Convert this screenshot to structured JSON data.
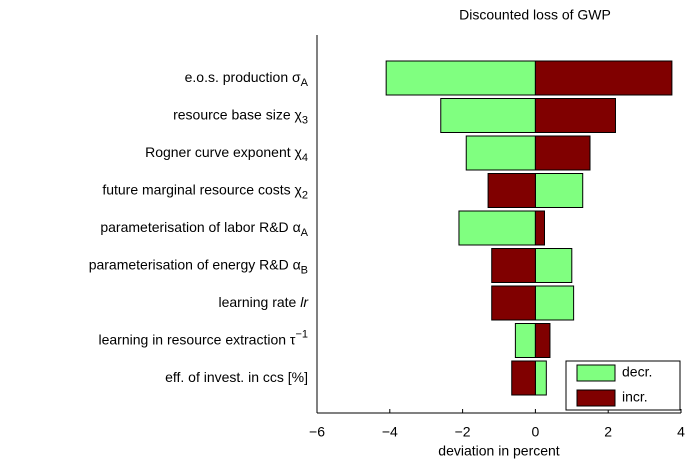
{
  "chart_data": {
    "type": "tornado",
    "title": "Discounted loss of GWP",
    "x_label": "deviation in percent",
    "categories": [
      [
        {
          "text": "e.o.s. production "
        },
        {
          "text": "σ"
        },
        {
          "text": "A",
          "style": "sub"
        }
      ],
      [
        {
          "text": "resource base size "
        },
        {
          "text": "χ"
        },
        {
          "text": "3",
          "style": "sub"
        }
      ],
      [
        {
          "text": "Rogner curve exponent "
        },
        {
          "text": "χ"
        },
        {
          "text": "4",
          "style": "sub"
        }
      ],
      [
        {
          "text": "future marginal resource costs "
        },
        {
          "text": "χ"
        },
        {
          "text": "2",
          "style": "sub"
        }
      ],
      [
        {
          "text": "parameterisation of labor R&D "
        },
        {
          "text": "α"
        },
        {
          "text": "A",
          "style": "sub"
        }
      ],
      [
        {
          "text": "parameterisation of energy R&D "
        },
        {
          "text": "α"
        },
        {
          "text": "B",
          "style": "sub"
        }
      ],
      [
        {
          "text": "learning rate "
        },
        {
          "text": "lr",
          "style": "italic"
        }
      ],
      [
        {
          "text": "learning in resource extraction "
        },
        {
          "text": "τ"
        },
        {
          "text": "−1",
          "style": "sup"
        }
      ],
      [
        {
          "text": "eff. of invest. in ccs [%]"
        }
      ]
    ],
    "series": [
      {
        "name": "decr.",
        "color": "#80ff80",
        "values": [
          -4.1,
          -2.6,
          -1.9,
          1.3,
          -2.1,
          1.0,
          1.05,
          -0.55,
          0.3
        ]
      },
      {
        "name": "incr.",
        "color": "#800000",
        "values": [
          3.75,
          2.2,
          1.5,
          -1.3,
          0.25,
          -1.2,
          -1.2,
          0.4,
          -0.65
        ]
      }
    ],
    "xlim": [
      -6,
      4
    ],
    "xticks": [
      {
        "value": -6,
        "label": "−6"
      },
      {
        "value": -4,
        "label": "−4"
      },
      {
        "value": -2,
        "label": "−2"
      },
      0,
      2,
      4
    ],
    "legend": "lower right"
  }
}
